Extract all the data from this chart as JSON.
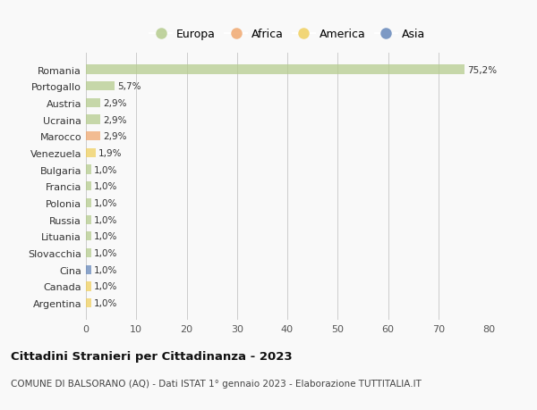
{
  "countries": [
    "Romania",
    "Portogallo",
    "Austria",
    "Ucraina",
    "Marocco",
    "Venezuela",
    "Bulgaria",
    "Francia",
    "Polonia",
    "Russia",
    "Lituania",
    "Slovacchia",
    "Cina",
    "Canada",
    "Argentina"
  ],
  "values": [
    75.2,
    5.7,
    2.9,
    2.9,
    2.9,
    1.9,
    1.0,
    1.0,
    1.0,
    1.0,
    1.0,
    1.0,
    1.0,
    1.0,
    1.0
  ],
  "labels": [
    "75,2%",
    "5,7%",
    "2,9%",
    "2,9%",
    "2,9%",
    "1,9%",
    "1,0%",
    "1,0%",
    "1,0%",
    "1,0%",
    "1,0%",
    "1,0%",
    "1,0%",
    "1,0%",
    "1,0%"
  ],
  "continents": [
    "Europa",
    "Europa",
    "Europa",
    "Europa",
    "Africa",
    "America",
    "Europa",
    "Europa",
    "Europa",
    "Europa",
    "Europa",
    "Europa",
    "Asia",
    "America",
    "America"
  ],
  "colors": {
    "Europa": "#b5cc8e",
    "Africa": "#f0a870",
    "America": "#f0d060",
    "Asia": "#6688bb"
  },
  "xlim": [
    0,
    80
  ],
  "xticks": [
    0,
    10,
    20,
    30,
    40,
    50,
    60,
    70,
    80
  ],
  "title": "Cittadini Stranieri per Cittadinanza - 2023",
  "subtitle": "COMUNE DI BALSORANO (AQ) - Dati ISTAT 1° gennaio 2023 - Elaborazione TUTTITALIA.IT",
  "background_color": "#f9f9f9",
  "grid_color": "#cccccc",
  "legend_entries": [
    "Europa",
    "Africa",
    "America",
    "Asia"
  ]
}
